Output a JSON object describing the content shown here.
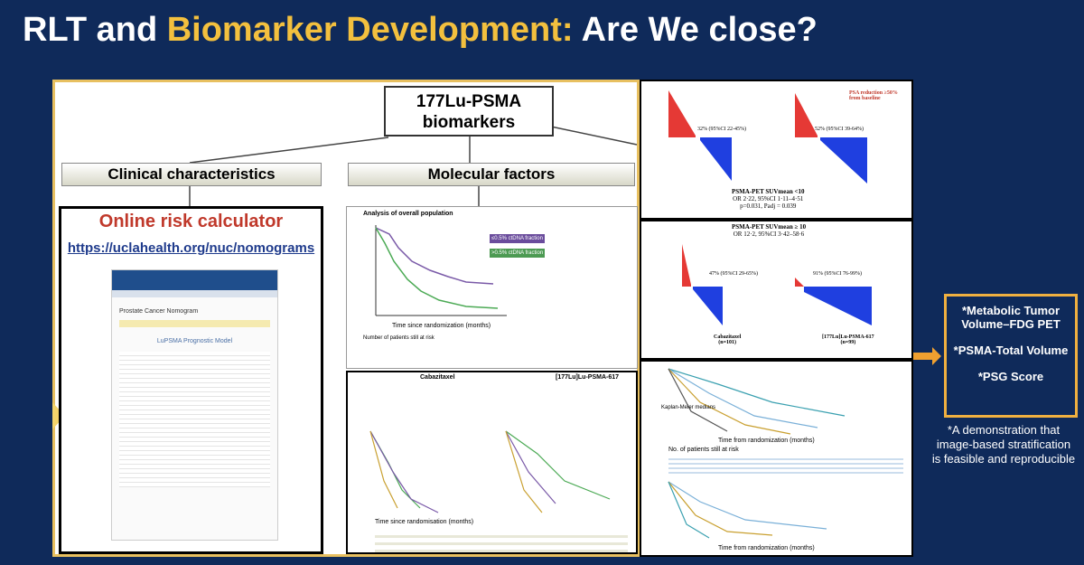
{
  "title": {
    "part1": "RLT and ",
    "part2": "Biomarker Development:",
    "part3": " Are We close?"
  },
  "diagram": {
    "root": [
      "177Lu-PSMA",
      "biomarkers"
    ],
    "branches": [
      "Clinical characteristics",
      "Molecular factors"
    ]
  },
  "calculator": {
    "heading": "Online risk calculator",
    "link": "https://uclahealth.org/nuc/nomograms",
    "page_heading": "Prostate Cancer Nomogram",
    "model": "LuPSMA Prognostic Model"
  },
  "molecular_panel": {
    "title": "Analysis of overall population",
    "legend": [
      "≤0.5% ctDNA fraction",
      ">0.5% ctDNA fraction"
    ],
    "x_label": "Time since randomization (months)",
    "risk_title": "Number of patients still at risk",
    "arms": [
      "Cabazitaxel",
      "[177Lu]Lu-PSMA-617"
    ],
    "arm_x_label": "Time since randomisation (months)"
  },
  "waterfall": {
    "top_legend": "PSA reduction ≥50% from baseline",
    "top_rates": [
      "32% (95%CI 22-45%)",
      "52% (95%CI 39-64%)"
    ],
    "top_caption": [
      "PSMA-PET SUVmean <10",
      "OR 2·22, 95%CI 1·11–4·51",
      "p=0.031, Padj = 0.039"
    ],
    "bottom_caption": [
      "PSMA-PET SUVmean ≥ 10",
      "OR 12·2, 95%CI 3·42–58·6"
    ],
    "bottom_rates": [
      "47% (95%CI 29-65%)",
      "91% (95%CI 76-99%)"
    ],
    "arms": [
      "Cabazitaxel",
      "(n=101)",
      "[177Lu]Lu-PSMA-617",
      "(n=99)"
    ]
  },
  "kaplan": {
    "x_label": "Time from randomization (months)",
    "risk_title": "No. of patients still at risk",
    "legend_title": "Kaplan-Meier medians"
  },
  "highlight": [
    "*Metabolic Tumor Volume–FDG PET",
    "*PSMA-Total Volume",
    "*PSG Score"
  ],
  "note": [
    "*A demonstration that",
    "image-based stratification",
    "is feasible and reproducible"
  ]
}
